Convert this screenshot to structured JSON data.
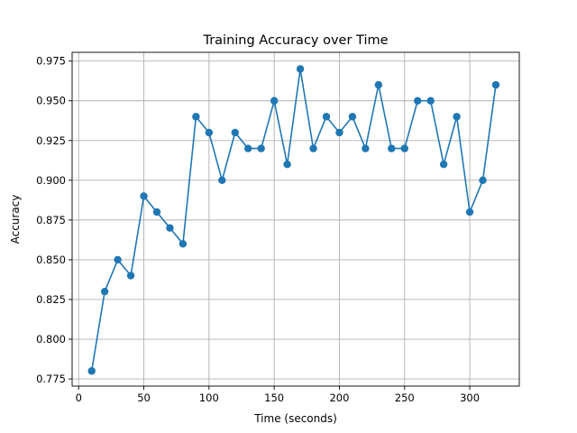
{
  "chart_data": {
    "type": "line",
    "title": "Training Accuracy over Time",
    "xlabel": "Time (seconds)",
    "ylabel": "Accuracy",
    "xlim": [
      -5,
      338
    ],
    "ylim": [
      0.7705,
      0.9805
    ],
    "xticks": [
      0,
      50,
      100,
      150,
      200,
      250,
      300
    ],
    "xtick_labels": [
      "0",
      "50",
      "100",
      "150",
      "200",
      "250",
      "300"
    ],
    "yticks": [
      0.775,
      0.8,
      0.825,
      0.85,
      0.875,
      0.9,
      0.925,
      0.95,
      0.975
    ],
    "ytick_labels": [
      "0.775",
      "0.800",
      "0.825",
      "0.850",
      "0.875",
      "0.900",
      "0.925",
      "0.950",
      "0.975"
    ],
    "grid": true,
    "marker": "circle",
    "series": [
      {
        "color": "#1f77b4",
        "x": [
          10,
          20,
          30,
          40,
          50,
          60,
          70,
          80,
          90,
          100,
          110,
          120,
          130,
          140,
          150,
          160,
          170,
          180,
          190,
          200,
          210,
          220,
          230,
          240,
          250,
          260,
          270,
          280,
          290,
          300,
          310,
          320
        ],
        "y": [
          0.78,
          0.83,
          0.85,
          0.84,
          0.89,
          0.88,
          0.87,
          0.86,
          0.94,
          0.93,
          0.9,
          0.93,
          0.92,
          0.92,
          0.95,
          0.91,
          0.97,
          0.92,
          0.94,
          0.93,
          0.94,
          0.92,
          0.96,
          0.92,
          0.92,
          0.95,
          0.95,
          0.91,
          0.94,
          0.88,
          0.9,
          0.96
        ]
      }
    ]
  }
}
